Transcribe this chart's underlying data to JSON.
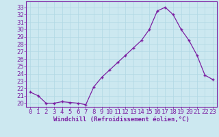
{
  "x": [
    0,
    1,
    2,
    3,
    4,
    5,
    6,
    7,
    8,
    9,
    10,
    11,
    12,
    13,
    14,
    15,
    16,
    17,
    18,
    19,
    20,
    21,
    22,
    23
  ],
  "y": [
    21.5,
    21.0,
    20.0,
    20.0,
    20.2,
    20.1,
    20.0,
    19.8,
    22.2,
    23.5,
    24.5,
    25.5,
    26.5,
    27.5,
    28.5,
    30.0,
    32.5,
    33.0,
    32.0,
    30.0,
    28.5,
    26.5,
    23.8,
    23.2
  ],
  "line_color": "#7b1fa2",
  "marker": "P",
  "marker_color": "#7b1fa2",
  "bg_color": "#cce8f0",
  "grid_color": "#b0d8e4",
  "xlabel": "Windchill (Refroidissement éolien,°C)",
  "xlabel_color": "#7b1fa2",
  "tick_color": "#7b1fa2",
  "ylim": [
    19.5,
    33.8
  ],
  "xlim": [
    -0.5,
    23.5
  ],
  "yticks": [
    20,
    21,
    22,
    23,
    24,
    25,
    26,
    27,
    28,
    29,
    30,
    31,
    32,
    33
  ],
  "xticks": [
    0,
    1,
    2,
    3,
    4,
    5,
    6,
    7,
    8,
    9,
    10,
    11,
    12,
    13,
    14,
    15,
    16,
    17,
    18,
    19,
    20,
    21,
    22,
    23
  ],
  "spine_color": "#7b1fa2",
  "font_size": 6.5,
  "marker_size": 3.5,
  "line_width": 0.9
}
